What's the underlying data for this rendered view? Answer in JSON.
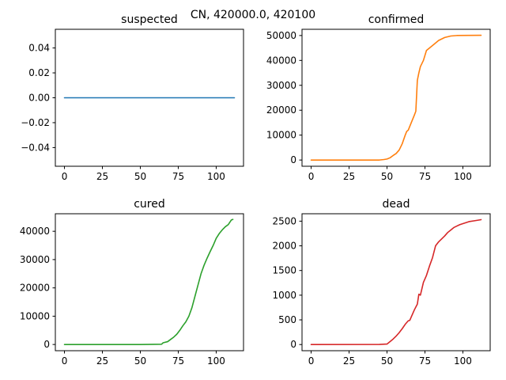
{
  "figure": {
    "suptitle": "CN, 420000.0, 420100"
  },
  "chart_data": [
    {
      "type": "line",
      "title": "suspected",
      "xlabel": "",
      "ylabel": "",
      "xlim": [
        -6,
        118
      ],
      "ylim": [
        -0.055,
        0.055
      ],
      "xticks": [
        0,
        25,
        50,
        75,
        100
      ],
      "yticks": [
        -0.04,
        -0.02,
        0.0,
        0.02,
        0.04
      ],
      "ytick_labels": [
        "−0.04",
        "−0.02",
        "0.00",
        "0.02",
        "0.04"
      ],
      "color": "#1f77b4",
      "grid": false,
      "points": [
        [
          0,
          0
        ],
        [
          112,
          0
        ]
      ]
    },
    {
      "type": "line",
      "title": "confirmed",
      "xlabel": "",
      "ylabel": "",
      "xlim": [
        -6,
        118
      ],
      "ylim": [
        -2500,
        52500
      ],
      "xticks": [
        0,
        25,
        50,
        75,
        100
      ],
      "yticks": [
        0,
        10000,
        20000,
        30000,
        40000,
        50000
      ],
      "ytick_labels": [
        "0",
        "10000",
        "20000",
        "30000",
        "40000",
        "50000"
      ],
      "color": "#ff7f0e",
      "grid": false,
      "points": [
        [
          0,
          0
        ],
        [
          45,
          0
        ],
        [
          48,
          200
        ],
        [
          50,
          400
        ],
        [
          52,
          900
        ],
        [
          54,
          1800
        ],
        [
          56,
          2600
        ],
        [
          58,
          4000
        ],
        [
          60,
          6500
        ],
        [
          62,
          10000
        ],
        [
          63,
          11500
        ],
        [
          64,
          12000
        ],
        [
          66,
          15000
        ],
        [
          68,
          18000
        ],
        [
          69,
          19600
        ],
        [
          70,
          32000
        ],
        [
          71,
          35000
        ],
        [
          72,
          37500
        ],
        [
          74,
          40000
        ],
        [
          76,
          44000
        ],
        [
          78,
          45000
        ],
        [
          80,
          46000
        ],
        [
          84,
          48000
        ],
        [
          88,
          49200
        ],
        [
          92,
          49800
        ],
        [
          96,
          50000
        ],
        [
          112,
          50100
        ]
      ]
    },
    {
      "type": "line",
      "title": "cured",
      "xlabel": "",
      "ylabel": "",
      "xlim": [
        -6,
        118
      ],
      "ylim": [
        -2200,
        46200
      ],
      "xticks": [
        0,
        25,
        50,
        75,
        100
      ],
      "yticks": [
        0,
        10000,
        20000,
        30000,
        40000
      ],
      "ytick_labels": [
        "0",
        "10000",
        "20000",
        "30000",
        "40000"
      ],
      "color": "#2ca02c",
      "grid": false,
      "points": [
        [
          0,
          0
        ],
        [
          50,
          0
        ],
        [
          64,
          100
        ],
        [
          65,
          600
        ],
        [
          68,
          1000
        ],
        [
          70,
          1800
        ],
        [
          72,
          2600
        ],
        [
          74,
          3600
        ],
        [
          76,
          5000
        ],
        [
          78,
          6600
        ],
        [
          80,
          8000
        ],
        [
          82,
          10000
        ],
        [
          84,
          13000
        ],
        [
          86,
          17000
        ],
        [
          88,
          21000
        ],
        [
          90,
          25000
        ],
        [
          92,
          28000
        ],
        [
          94,
          30500
        ],
        [
          96,
          32800
        ],
        [
          98,
          35000
        ],
        [
          100,
          37500
        ],
        [
          102,
          39200
        ],
        [
          104,
          40500
        ],
        [
          106,
          41600
        ],
        [
          108,
          42400
        ],
        [
          110,
          44000
        ],
        [
          111,
          44200
        ]
      ]
    },
    {
      "type": "line",
      "title": "dead",
      "xlabel": "",
      "ylabel": "",
      "xlim": [
        -6,
        118
      ],
      "ylim": [
        -125,
        2650
      ],
      "xticks": [
        0,
        25,
        50,
        75,
        100
      ],
      "yticks": [
        0,
        500,
        1000,
        1500,
        2000,
        2500
      ],
      "ytick_labels": [
        "0",
        "500",
        "1000",
        "1500",
        "2000",
        "2500"
      ],
      "color": "#d62728",
      "grid": false,
      "points": [
        [
          0,
          0
        ],
        [
          45,
          2
        ],
        [
          50,
          10
        ],
        [
          52,
          60
        ],
        [
          54,
          110
        ],
        [
          56,
          170
        ],
        [
          58,
          240
        ],
        [
          60,
          320
        ],
        [
          62,
          410
        ],
        [
          64,
          480
        ],
        [
          65,
          490
        ],
        [
          66,
          560
        ],
        [
          68,
          700
        ],
        [
          70,
          820
        ],
        [
          71,
          1020
        ],
        [
          72,
          1000
        ],
        [
          73,
          1130
        ],
        [
          74,
          1260
        ],
        [
          76,
          1400
        ],
        [
          78,
          1590
        ],
        [
          80,
          1760
        ],
        [
          82,
          2000
        ],
        [
          84,
          2080
        ],
        [
          86,
          2140
        ],
        [
          88,
          2200
        ],
        [
          90,
          2270
        ],
        [
          92,
          2320
        ],
        [
          94,
          2370
        ],
        [
          96,
          2400
        ],
        [
          98,
          2430
        ],
        [
          100,
          2450
        ],
        [
          102,
          2470
        ],
        [
          104,
          2490
        ],
        [
          108,
          2510
        ],
        [
          112,
          2530
        ]
      ]
    }
  ]
}
